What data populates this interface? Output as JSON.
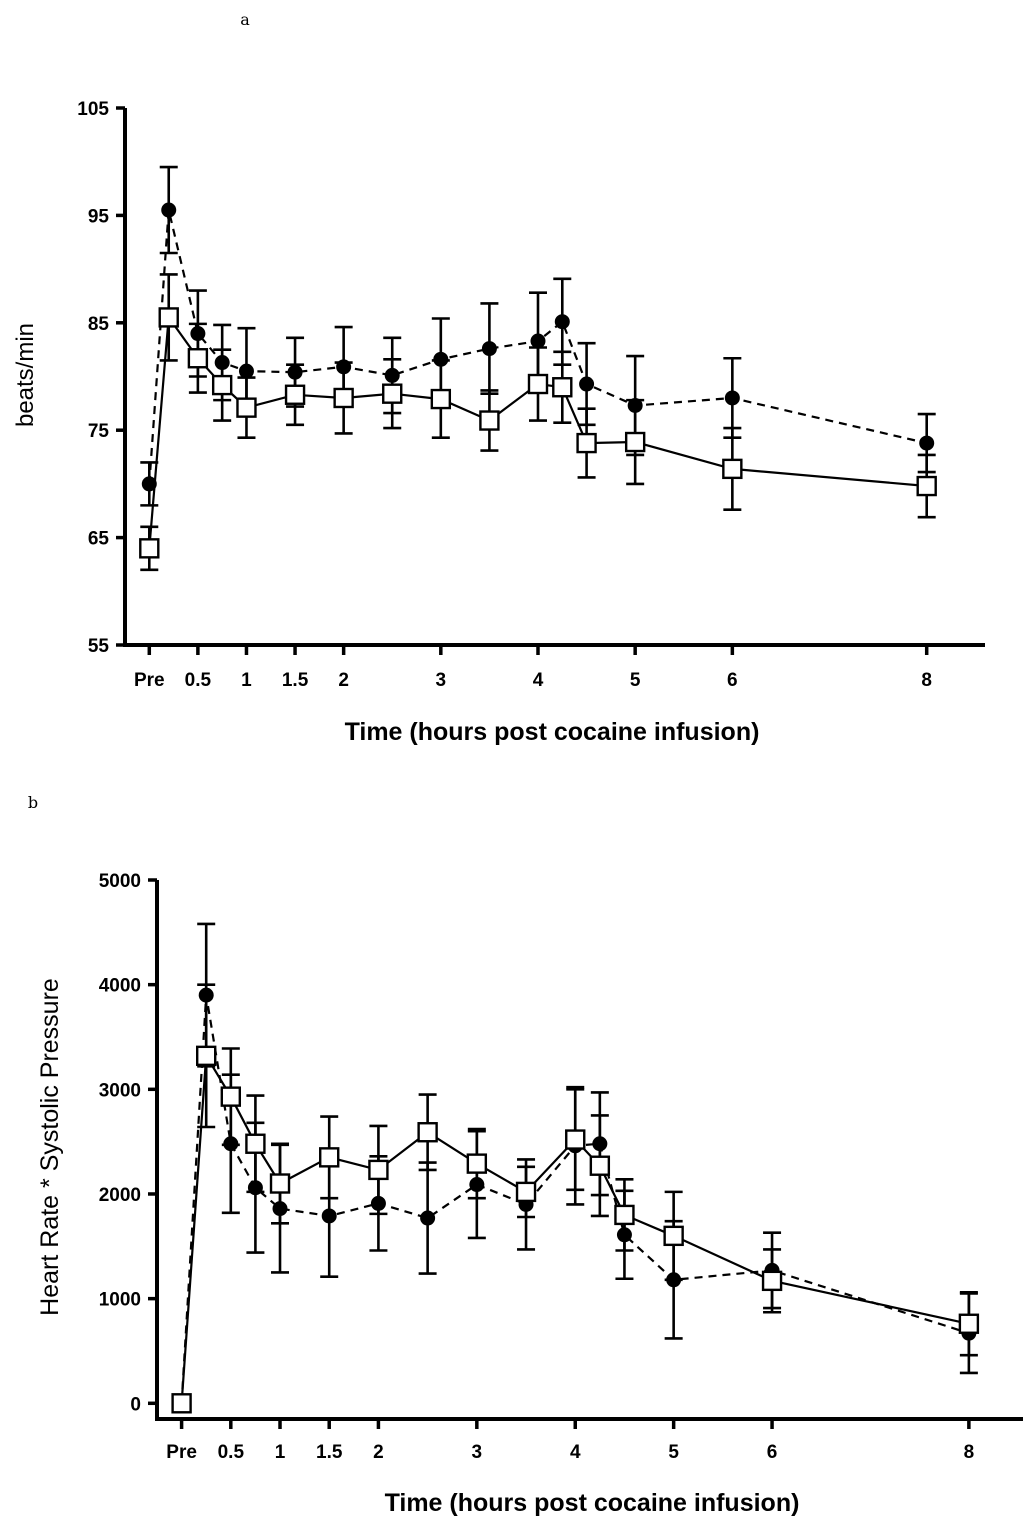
{
  "chart_data": [
    {
      "panel_label": "a",
      "type": "line",
      "xlabel": "Time (hours post cocaine infusion)",
      "ylabel": "beats/min",
      "ylim": [
        55,
        105
      ],
      "yticks": [
        55,
        65,
        75,
        85,
        95,
        105
      ],
      "xlim": [
        -0.25,
        8.6
      ],
      "xticks": [
        {
          "label": "Pre",
          "x": 0
        },
        {
          "label": "0.5",
          "x": 0.5
        },
        {
          "label": "1",
          "x": 1
        },
        {
          "label": "1.5",
          "x": 1.5
        },
        {
          "label": "2",
          "x": 2
        },
        {
          "label": "3",
          "x": 3
        },
        {
          "label": "4",
          "x": 4
        },
        {
          "label": "5",
          "x": 5
        },
        {
          "label": "6",
          "x": 6
        },
        {
          "label": "8",
          "x": 8
        }
      ],
      "grid": false,
      "legend": "none",
      "series": [
        {
          "marker": "filled-circle",
          "line_style": "dashed",
          "color": "#000000",
          "points": [
            {
              "x": 0.0,
              "y": 70.0,
              "err": 2.0
            },
            {
              "x": 0.2,
              "y": 95.5,
              "err": 4.0
            },
            {
              "x": 0.5,
              "y": 84.0,
              "err": 4.0
            },
            {
              "x": 0.75,
              "y": 81.3,
              "err": 3.5
            },
            {
              "x": 1.0,
              "y": 80.5,
              "err": 4.0
            },
            {
              "x": 1.5,
              "y": 80.4,
              "err": 3.2
            },
            {
              "x": 2.0,
              "y": 80.9,
              "err": 3.7
            },
            {
              "x": 2.5,
              "y": 80.1,
              "err": 3.5
            },
            {
              "x": 3.0,
              "y": 81.6,
              "err": 3.8
            },
            {
              "x": 3.5,
              "y": 82.6,
              "err": 4.2
            },
            {
              "x": 4.0,
              "y": 83.3,
              "err": 4.5
            },
            {
              "x": 4.25,
              "y": 85.1,
              "err": 4.0
            },
            {
              "x": 4.5,
              "y": 79.3,
              "err": 3.8
            },
            {
              "x": 5.0,
              "y": 77.3,
              "err": 4.6
            },
            {
              "x": 6.0,
              "y": 78.0,
              "err": 3.7
            },
            {
              "x": 8.0,
              "y": 73.8,
              "err": 2.7
            }
          ]
        },
        {
          "marker": "open-square",
          "line_style": "solid",
          "color": "#000000",
          "points": [
            {
              "x": 0.0,
              "y": 64.0,
              "err": 2.0
            },
            {
              "x": 0.2,
              "y": 85.5,
              "err": 4.0
            },
            {
              "x": 0.5,
              "y": 81.7,
              "err": 3.2
            },
            {
              "x": 0.75,
              "y": 79.2,
              "err": 3.3
            },
            {
              "x": 1.0,
              "y": 77.1,
              "err": 2.8
            },
            {
              "x": 1.5,
              "y": 78.3,
              "err": 2.8
            },
            {
              "x": 2.0,
              "y": 78.0,
              "err": 3.3
            },
            {
              "x": 2.5,
              "y": 78.4,
              "err": 3.2
            },
            {
              "x": 3.0,
              "y": 77.9,
              "err": 3.6
            },
            {
              "x": 3.5,
              "y": 75.9,
              "err": 2.8
            },
            {
              "x": 4.0,
              "y": 79.3,
              "err": 3.4
            },
            {
              "x": 4.25,
              "y": 79.0,
              "err": 3.3
            },
            {
              "x": 4.5,
              "y": 73.8,
              "err": 3.2
            },
            {
              "x": 5.0,
              "y": 73.9,
              "err": 3.9
            },
            {
              "x": 6.0,
              "y": 71.4,
              "err": 3.8
            },
            {
              "x": 8.0,
              "y": 69.8,
              "err": 2.9
            }
          ]
        }
      ]
    },
    {
      "panel_label": "b",
      "type": "line",
      "xlabel": "Time (hours post cocaine infusion)",
      "ylabel": "Heart Rate * Systolic Pressure",
      "ylim": [
        -150,
        5000
      ],
      "yticks": [
        0,
        1000,
        2000,
        3000,
        4000,
        5000
      ],
      "xlim": [
        -0.25,
        8.55
      ],
      "xticks": [
        {
          "label": "Pre",
          "x": 0
        },
        {
          "label": "0.5",
          "x": 0.5
        },
        {
          "label": "1",
          "x": 1
        },
        {
          "label": "1.5",
          "x": 1.5
        },
        {
          "label": "2",
          "x": 2
        },
        {
          "label": "3",
          "x": 3
        },
        {
          "label": "4",
          "x": 4
        },
        {
          "label": "5",
          "x": 5
        },
        {
          "label": "6",
          "x": 6
        },
        {
          "label": "8",
          "x": 8
        }
      ],
      "grid": false,
      "legend": "none",
      "series": [
        {
          "marker": "filled-circle",
          "line_style": "dashed",
          "color": "#000000",
          "points": [
            {
              "x": 0.0,
              "y": 0,
              "err": 0
            },
            {
              "x": 0.25,
              "y": 3900,
              "err": 680
            },
            {
              "x": 0.5,
              "y": 2480,
              "err": 660
            },
            {
              "x": 0.75,
              "y": 2060,
              "err": 620
            },
            {
              "x": 1.0,
              "y": 1860,
              "err": 610
            },
            {
              "x": 1.5,
              "y": 1790,
              "err": 580
            },
            {
              "x": 2.0,
              "y": 1910,
              "err": 450
            },
            {
              "x": 2.5,
              "y": 1770,
              "err": 530
            },
            {
              "x": 3.0,
              "y": 2090,
              "err": 510
            },
            {
              "x": 3.5,
              "y": 1900,
              "err": 430
            },
            {
              "x": 4.0,
              "y": 2460,
              "err": 560
            },
            {
              "x": 4.25,
              "y": 2480,
              "err": 490
            },
            {
              "x": 4.5,
              "y": 1610,
              "err": 420
            },
            {
              "x": 5.0,
              "y": 1180,
              "err": 560
            },
            {
              "x": 6.0,
              "y": 1270,
              "err": 360
            },
            {
              "x": 8.0,
              "y": 670,
              "err": 380
            }
          ]
        },
        {
          "marker": "open-square",
          "line_style": "solid",
          "color": "#000000",
          "points": [
            {
              "x": 0.0,
              "y": 0,
              "err": 0
            },
            {
              "x": 0.25,
              "y": 3320,
              "err": 680
            },
            {
              "x": 0.5,
              "y": 2930,
              "err": 460
            },
            {
              "x": 0.75,
              "y": 2480,
              "err": 460
            },
            {
              "x": 1.0,
              "y": 2100,
              "err": 380
            },
            {
              "x": 1.5,
              "y": 2350,
              "err": 390
            },
            {
              "x": 2.0,
              "y": 2230,
              "err": 420
            },
            {
              "x": 2.5,
              "y": 2590,
              "err": 360
            },
            {
              "x": 3.0,
              "y": 2290,
              "err": 330
            },
            {
              "x": 3.5,
              "y": 2020,
              "err": 240
            },
            {
              "x": 4.0,
              "y": 2520,
              "err": 480
            },
            {
              "x": 4.25,
              "y": 2270,
              "err": 480
            },
            {
              "x": 4.5,
              "y": 1800,
              "err": 340
            },
            {
              "x": 5.0,
              "y": 1600,
              "err": 420
            },
            {
              "x": 6.0,
              "y": 1170,
              "err": 300
            },
            {
              "x": 8.0,
              "y": 760,
              "err": 300
            }
          ]
        }
      ]
    }
  ]
}
